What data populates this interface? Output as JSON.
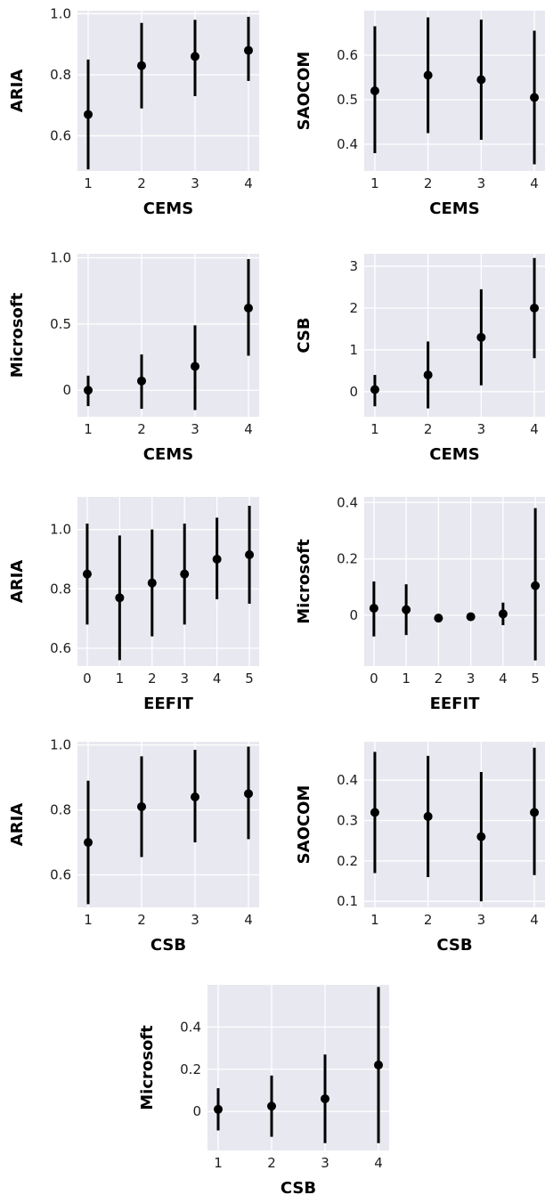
{
  "colors": {
    "panel_bg": "#e8e8f0",
    "grid": "#ffffff",
    "marker": "#000000"
  },
  "chart_data": [
    {
      "type": "scatter",
      "xlabel": "CEMS",
      "ylabel": "ARIA",
      "x": [
        1,
        2,
        3,
        4
      ],
      "y": [
        0.67,
        0.83,
        0.86,
        0.88
      ],
      "err_low": [
        0.49,
        0.69,
        0.73,
        0.78
      ],
      "err_high": [
        0.85,
        0.97,
        0.98,
        0.99
      ],
      "xticks": [
        1,
        2,
        3,
        4
      ],
      "xtick_labels": [
        "1",
        "2",
        "3",
        "4"
      ],
      "yticks": [
        0.6,
        0.8,
        1.0
      ],
      "ytick_labels": [
        "0.6",
        "0.8",
        "1.0"
      ],
      "xlim": [
        0.8,
        4.2
      ],
      "ylim": [
        0.485,
        1.01
      ],
      "grid": true
    },
    {
      "type": "scatter",
      "xlabel": "CEMS",
      "ylabel": "SAOCOM",
      "x": [
        1,
        2,
        3,
        4
      ],
      "y": [
        0.52,
        0.555,
        0.545,
        0.505
      ],
      "err_low": [
        0.38,
        0.425,
        0.41,
        0.355
      ],
      "err_high": [
        0.665,
        0.685,
        0.68,
        0.655
      ],
      "xticks": [
        1,
        2,
        3,
        4
      ],
      "xtick_labels": [
        "1",
        "2",
        "3",
        "4"
      ],
      "yticks": [
        0.4,
        0.5,
        0.6
      ],
      "ytick_labels": [
        "0.4",
        "0.5",
        "0.6"
      ],
      "xlim": [
        0.8,
        4.2
      ],
      "ylim": [
        0.34,
        0.7
      ],
      "grid": true
    },
    {
      "type": "scatter",
      "xlabel": "CEMS",
      "ylabel": "Microsoft",
      "x": [
        1,
        2,
        3,
        4
      ],
      "y": [
        0.0,
        0.07,
        0.18,
        0.62
      ],
      "err_low": [
        -0.12,
        -0.14,
        -0.15,
        0.26
      ],
      "err_high": [
        0.11,
        0.27,
        0.49,
        0.99
      ],
      "xticks": [
        1,
        2,
        3,
        4
      ],
      "xtick_labels": [
        "1",
        "2",
        "3",
        "4"
      ],
      "yticks": [
        0.0,
        0.5,
        1.0
      ],
      "ytick_labels": [
        "0",
        "0.5",
        "1.0"
      ],
      "xlim": [
        0.8,
        4.2
      ],
      "ylim": [
        -0.2,
        1.03
      ],
      "grid": true
    },
    {
      "type": "scatter",
      "xlabel": "CEMS",
      "ylabel": "CSB",
      "x": [
        1,
        2,
        3,
        4
      ],
      "y": [
        0.05,
        0.4,
        1.3,
        2.0
      ],
      "err_low": [
        -0.35,
        -0.4,
        0.15,
        0.8
      ],
      "err_high": [
        0.4,
        1.2,
        2.45,
        3.2
      ],
      "xticks": [
        1,
        2,
        3,
        4
      ],
      "xtick_labels": [
        "1",
        "2",
        "3",
        "4"
      ],
      "yticks": [
        0,
        1,
        2,
        3
      ],
      "ytick_labels": [
        "0",
        "1",
        "2",
        "3"
      ],
      "xlim": [
        0.8,
        4.2
      ],
      "ylim": [
        -0.6,
        3.3
      ],
      "grid": true
    },
    {
      "type": "scatter",
      "xlabel": "EEFIT",
      "ylabel": "ARIA",
      "x": [
        0,
        1,
        2,
        3,
        4,
        5
      ],
      "y": [
        0.85,
        0.77,
        0.82,
        0.85,
        0.9,
        0.915
      ],
      "err_low": [
        0.68,
        0.56,
        0.64,
        0.68,
        0.765,
        0.75
      ],
      "err_high": [
        1.02,
        0.98,
        1.0,
        1.02,
        1.04,
        1.08
      ],
      "xticks": [
        0,
        1,
        2,
        3,
        4,
        5
      ],
      "xtick_labels": [
        "0",
        "1",
        "2",
        "3",
        "4",
        "5"
      ],
      "yticks": [
        0.6,
        0.8,
        1.0
      ],
      "ytick_labels": [
        "0.6",
        "0.8",
        "1.0"
      ],
      "xlim": [
        -0.3,
        5.3
      ],
      "ylim": [
        0.54,
        1.11
      ],
      "grid": true
    },
    {
      "type": "scatter",
      "xlabel": "EEFIT",
      "ylabel": "Microsoft",
      "x": [
        0,
        1,
        2,
        3,
        4,
        5
      ],
      "y": [
        0.025,
        0.02,
        -0.01,
        -0.005,
        0.005,
        0.105
      ],
      "err_low": [
        -0.075,
        -0.07,
        -0.01,
        -0.005,
        -0.035,
        -0.16
      ],
      "err_high": [
        0.12,
        0.11,
        -0.01,
        -0.005,
        0.045,
        0.38
      ],
      "xticks": [
        0,
        1,
        2,
        3,
        4,
        5
      ],
      "xtick_labels": [
        "0",
        "1",
        "2",
        "3",
        "4",
        "5"
      ],
      "yticks": [
        0.0,
        0.2,
        0.4
      ],
      "ytick_labels": [
        "0",
        "0.2",
        "0.4"
      ],
      "xlim": [
        -0.3,
        5.3
      ],
      "ylim": [
        -0.18,
        0.42
      ],
      "grid": true
    },
    {
      "type": "scatter",
      "xlabel": "CSB",
      "ylabel": "ARIA",
      "x": [
        1,
        2,
        3,
        4
      ],
      "y": [
        0.7,
        0.81,
        0.84,
        0.85
      ],
      "err_low": [
        0.51,
        0.655,
        0.7,
        0.71
      ],
      "err_high": [
        0.89,
        0.965,
        0.985,
        0.995
      ],
      "xticks": [
        1,
        2,
        3,
        4
      ],
      "xtick_labels": [
        "1",
        "2",
        "3",
        "4"
      ],
      "yticks": [
        0.6,
        0.8,
        1.0
      ],
      "ytick_labels": [
        "0.6",
        "0.8",
        "1.0"
      ],
      "xlim": [
        0.8,
        4.2
      ],
      "ylim": [
        0.5,
        1.01
      ],
      "grid": true
    },
    {
      "type": "scatter",
      "xlabel": "CSB",
      "ylabel": "SAOCOM",
      "x": [
        1,
        2,
        3,
        4
      ],
      "y": [
        0.32,
        0.31,
        0.26,
        0.32
      ],
      "err_low": [
        0.17,
        0.16,
        0.1,
        0.165
      ],
      "err_high": [
        0.47,
        0.46,
        0.42,
        0.48
      ],
      "xticks": [
        1,
        2,
        3,
        4
      ],
      "xtick_labels": [
        "1",
        "2",
        "3",
        "4"
      ],
      "yticks": [
        0.1,
        0.2,
        0.3,
        0.4
      ],
      "ytick_labels": [
        "0.1",
        "0.2",
        "0.3",
        "0.4"
      ],
      "xlim": [
        0.8,
        4.2
      ],
      "ylim": [
        0.085,
        0.495
      ],
      "grid": true
    },
    {
      "type": "scatter",
      "xlabel": "CSB",
      "ylabel": "Microsoft",
      "x": [
        1,
        2,
        3,
        4
      ],
      "y": [
        0.01,
        0.025,
        0.06,
        0.22
      ],
      "err_low": [
        -0.09,
        -0.12,
        -0.15,
        -0.15
      ],
      "err_high": [
        0.11,
        0.17,
        0.27,
        0.59
      ],
      "xticks": [
        1,
        2,
        3,
        4
      ],
      "xtick_labels": [
        "1",
        "2",
        "3",
        "4"
      ],
      "yticks": [
        0.0,
        0.2,
        0.4
      ],
      "ytick_labels": [
        "0",
        "0.2",
        "0.4"
      ],
      "xlim": [
        0.8,
        4.2
      ],
      "ylim": [
        -0.185,
        0.6
      ],
      "grid": true
    }
  ]
}
